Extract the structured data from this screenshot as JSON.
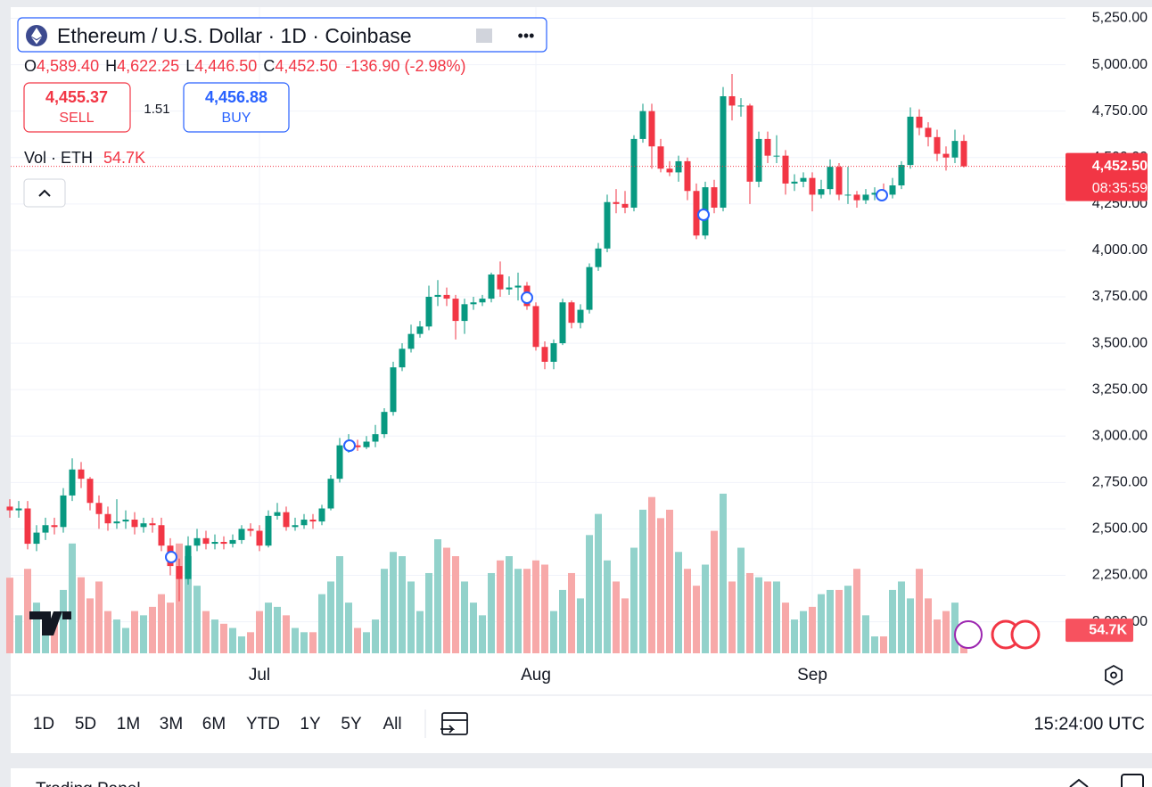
{
  "chart_data": {
    "type": "candlestick",
    "title": "Ethereum / U.S. Dollar · 1D · Coinbase",
    "ohlc_header": {
      "o": "O",
      "open": "4,589.40",
      "h": "H",
      "high": "4,622.25",
      "l": "L",
      "low": "4,446.50",
      "c": "C",
      "close": "4,452.50",
      "change": "-136.90 (-2.98%)"
    },
    "sell_price": "4,455.37",
    "sell": "SELL",
    "spread": "1.51",
    "buy_price": "4,456.88",
    "buy": "BUY",
    "countdown": "08:35:59",
    "watermark": "TradingView",
    "categories": [
      null,
      null,
      null,
      null,
      null,
      null,
      null,
      null,
      null,
      null,
      null,
      null,
      null,
      null,
      null,
      null,
      null,
      null,
      null,
      null,
      null,
      null,
      null,
      null,
      null,
      null,
      null,
      null,
      "Jul",
      null,
      null,
      null,
      null,
      null,
      null,
      null,
      null,
      null,
      null,
      null,
      null,
      null,
      null,
      null,
      null,
      null,
      null,
      null,
      null,
      null,
      null,
      null,
      null,
      null,
      null,
      null,
      null,
      null,
      null,
      "Aug",
      null,
      null,
      null,
      null,
      null,
      null,
      null,
      null,
      null,
      null,
      null,
      null,
      null,
      null,
      null,
      null,
      null,
      null,
      null,
      null,
      null,
      null,
      null,
      null,
      null,
      null,
      null,
      null,
      null,
      null,
      "Sep",
      null,
      null,
      null,
      null,
      null,
      null,
      null,
      null,
      null,
      null,
      null,
      null,
      null,
      null,
      null,
      null,
      null
    ],
    "open": [
      2620,
      2600,
      2610,
      2420,
      2480,
      2520,
      2510,
      2680,
      2820,
      2770,
      2640,
      2580,
      2530,
      2540,
      2550,
      2510,
      2530,
      2520,
      2410,
      2300,
      2230,
      2410,
      2450,
      2420,
      2430,
      2420,
      2440,
      2500,
      2490,
      2410,
      2570,
      2590,
      2510,
      2520,
      2550,
      2540,
      2610,
      2770,
      2950,
      2950,
      2940,
      2970,
      3010,
      3130,
      3370,
      3470,
      3550,
      3590,
      3750,
      3760,
      3740,
      3620,
      3710,
      3720,
      3740,
      3870,
      3790,
      3800,
      3810,
      3700,
      3480,
      3400,
      3500,
      3720,
      3610,
      3680,
      3910,
      4010,
      4260,
      4250,
      4230,
      4600,
      4750,
      4560,
      4440,
      4420,
      4480,
      4320,
      4080,
      4340,
      4230,
      4830,
      4780,
      4780,
      4370,
      4600,
      4510,
      4510,
      4360,
      4370,
      4390,
      4300,
      4330,
      4450,
      4300,
      4300,
      4270,
      4300,
      4310,
      4300,
      4350,
      4460,
      4720,
      4660,
      4610,
      4520,
      4500,
      4589.4
    ],
    "high": [
      2660,
      2650,
      2650,
      2520,
      2560,
      2560,
      2720,
      2880,
      2860,
      2780,
      2680,
      2620,
      2660,
      2600,
      2590,
      2560,
      2560,
      2560,
      2450,
      2340,
      2460,
      2500,
      2490,
      2470,
      2460,
      2470,
      2520,
      2530,
      2520,
      2600,
      2640,
      2620,
      2560,
      2580,
      2580,
      2630,
      2790,
      2990,
      3010,
      2980,
      3000,
      3060,
      3150,
      3400,
      3500,
      3600,
      3620,
      3810,
      3840,
      3800,
      3760,
      3740,
      3750,
      3760,
      3880,
      3940,
      3860,
      3880,
      3830,
      3720,
      3510,
      3520,
      3740,
      3730,
      3710,
      3930,
      4040,
      4300,
      4330,
      4320,
      4620,
      4790,
      4790,
      4600,
      4480,
      4510,
      4500,
      4360,
      4370,
      4380,
      4880,
      4950,
      4820,
      4790,
      4640,
      4640,
      4620,
      4540,
      4410,
      4420,
      4420,
      4380,
      4490,
      4470,
      4450,
      4320,
      4330,
      4340,
      4360,
      4390,
      4480,
      4770,
      4760,
      4690,
      4650,
      4560,
      4650,
      4622.25
    ],
    "low": [
      2560,
      2560,
      2390,
      2380,
      2440,
      2470,
      2480,
      2650,
      2720,
      2600,
      2500,
      2490,
      2500,
      2500,
      2470,
      2480,
      2480,
      2380,
      2250,
      2110,
      2200,
      2380,
      2390,
      2390,
      2390,
      2400,
      2420,
      2460,
      2380,
      2400,
      2550,
      2490,
      2490,
      2500,
      2500,
      2520,
      2600,
      2750,
      2910,
      2920,
      2930,
      2940,
      2990,
      3110,
      3350,
      3450,
      3530,
      3570,
      3700,
      3700,
      3520,
      3550,
      3680,
      3700,
      3720,
      3750,
      3760,
      3730,
      3680,
      3460,
      3360,
      3360,
      3490,
      3580,
      3580,
      3660,
      3890,
      3990,
      4200,
      4200,
      4210,
      4580,
      4440,
      4420,
      4400,
      4370,
      4270,
      4060,
      4060,
      4200,
      4210,
      4700,
      4720,
      4250,
      4340,
      4470,
      4470,
      4300,
      4320,
      4340,
      4210,
      4280,
      4300,
      4270,
      4250,
      4230,
      4250,
      4270,
      4290,
      4280,
      4330,
      4440,
      4620,
      4560,
      4480,
      4430,
      4470,
      4446.5
    ],
    "close": [
      2600,
      2610,
      2420,
      2480,
      2520,
      2510,
      2680,
      2820,
      2770,
      2640,
      2580,
      2530,
      2540,
      2550,
      2510,
      2530,
      2520,
      2410,
      2300,
      2230,
      2410,
      2450,
      2420,
      2430,
      2420,
      2440,
      2500,
      2490,
      2410,
      2570,
      2590,
      2510,
      2520,
      2550,
      2540,
      2610,
      2770,
      2950,
      2950,
      2940,
      2970,
      3010,
      3130,
      3370,
      3470,
      3550,
      3590,
      3750,
      3760,
      3740,
      3620,
      3710,
      3720,
      3740,
      3870,
      3790,
      3800,
      3810,
      3700,
      3480,
      3400,
      3500,
      3720,
      3610,
      3680,
      3910,
      4010,
      4260,
      4250,
      4230,
      4600,
      4750,
      4560,
      4440,
      4420,
      4480,
      4320,
      4080,
      4340,
      4230,
      4830,
      4780,
      4780,
      4370,
      4600,
      4510,
      4510,
      4360,
      4370,
      4390,
      4300,
      4330,
      4450,
      4300,
      4300,
      4270,
      4300,
      4310,
      4300,
      4350,
      4460,
      4720,
      4660,
      4610,
      4520,
      4500,
      4589.4,
      4452.5
    ],
    "up_color": "#089981",
    "down_color": "#f23645",
    "volume": {
      "name": "Vol · ETH",
      "axis": "y2",
      "value_label": "54.7K",
      "up_color": "#92d2cb",
      "down_color": "#f7a9a9",
      "values": [
        179,
        90,
        200,
        120,
        90,
        80,
        150,
        260,
        180,
        130,
        170,
        100,
        80,
        60,
        100,
        90,
        110,
        140,
        120,
        260,
        230,
        160,
        100,
        80,
        70,
        60,
        40,
        50,
        100,
        120,
        110,
        90,
        60,
        50,
        50,
        140,
        170,
        230,
        120,
        60,
        50,
        80,
        200,
        240,
        230,
        170,
        100,
        190,
        270,
        250,
        230,
        170,
        120,
        90,
        190,
        220,
        230,
        200,
        200,
        220,
        210,
        100,
        150,
        190,
        130,
        280,
        330,
        220,
        170,
        130,
        250,
        340,
        370,
        320,
        340,
        240,
        200,
        160,
        210,
        290,
        378,
        170,
        250,
        190,
        180,
        170,
        170,
        120,
        80,
        100,
        110,
        140,
        150,
        150,
        160,
        200,
        90,
        40,
        40,
        150,
        170,
        130,
        200,
        130,
        80,
        100,
        120,
        54.7
      ]
    },
    "ylim": [
      1830,
      5310
    ],
    "yticks": [
      {
        "value": 2000,
        "label": "2,000.00"
      },
      {
        "value": 2250,
        "label": "2,250.00"
      },
      {
        "value": 2500,
        "label": "2,500.00"
      },
      {
        "value": 2750,
        "label": "2,750.00"
      },
      {
        "value": 3000,
        "label": "3,000.00"
      },
      {
        "value": 3250,
        "label": "3,250.00"
      },
      {
        "value": 3500,
        "label": "3,500.00"
      },
      {
        "value": 3750,
        "label": "3,750.00"
      },
      {
        "value": 4000,
        "label": "4,000.00"
      },
      {
        "value": 4250,
        "label": "4,250.00"
      },
      {
        "value": 4500,
        "label": "4,500.00"
      },
      {
        "value": 4750,
        "label": "4,750.00"
      },
      {
        "value": 5000,
        "label": "5,000.00"
      },
      {
        "value": 5250,
        "label": "5,250.00"
      }
    ],
    "y2lim": [
      0,
      1530
    ],
    "grid": true
  },
  "toolbar": {
    "ranges": [
      "1D",
      "5D",
      "1M",
      "3M",
      "6M",
      "YTD",
      "1Y",
      "5Y",
      "All"
    ],
    "clock": "15:24:00 UTC"
  },
  "panel": {
    "title": "Trading Panel"
  }
}
